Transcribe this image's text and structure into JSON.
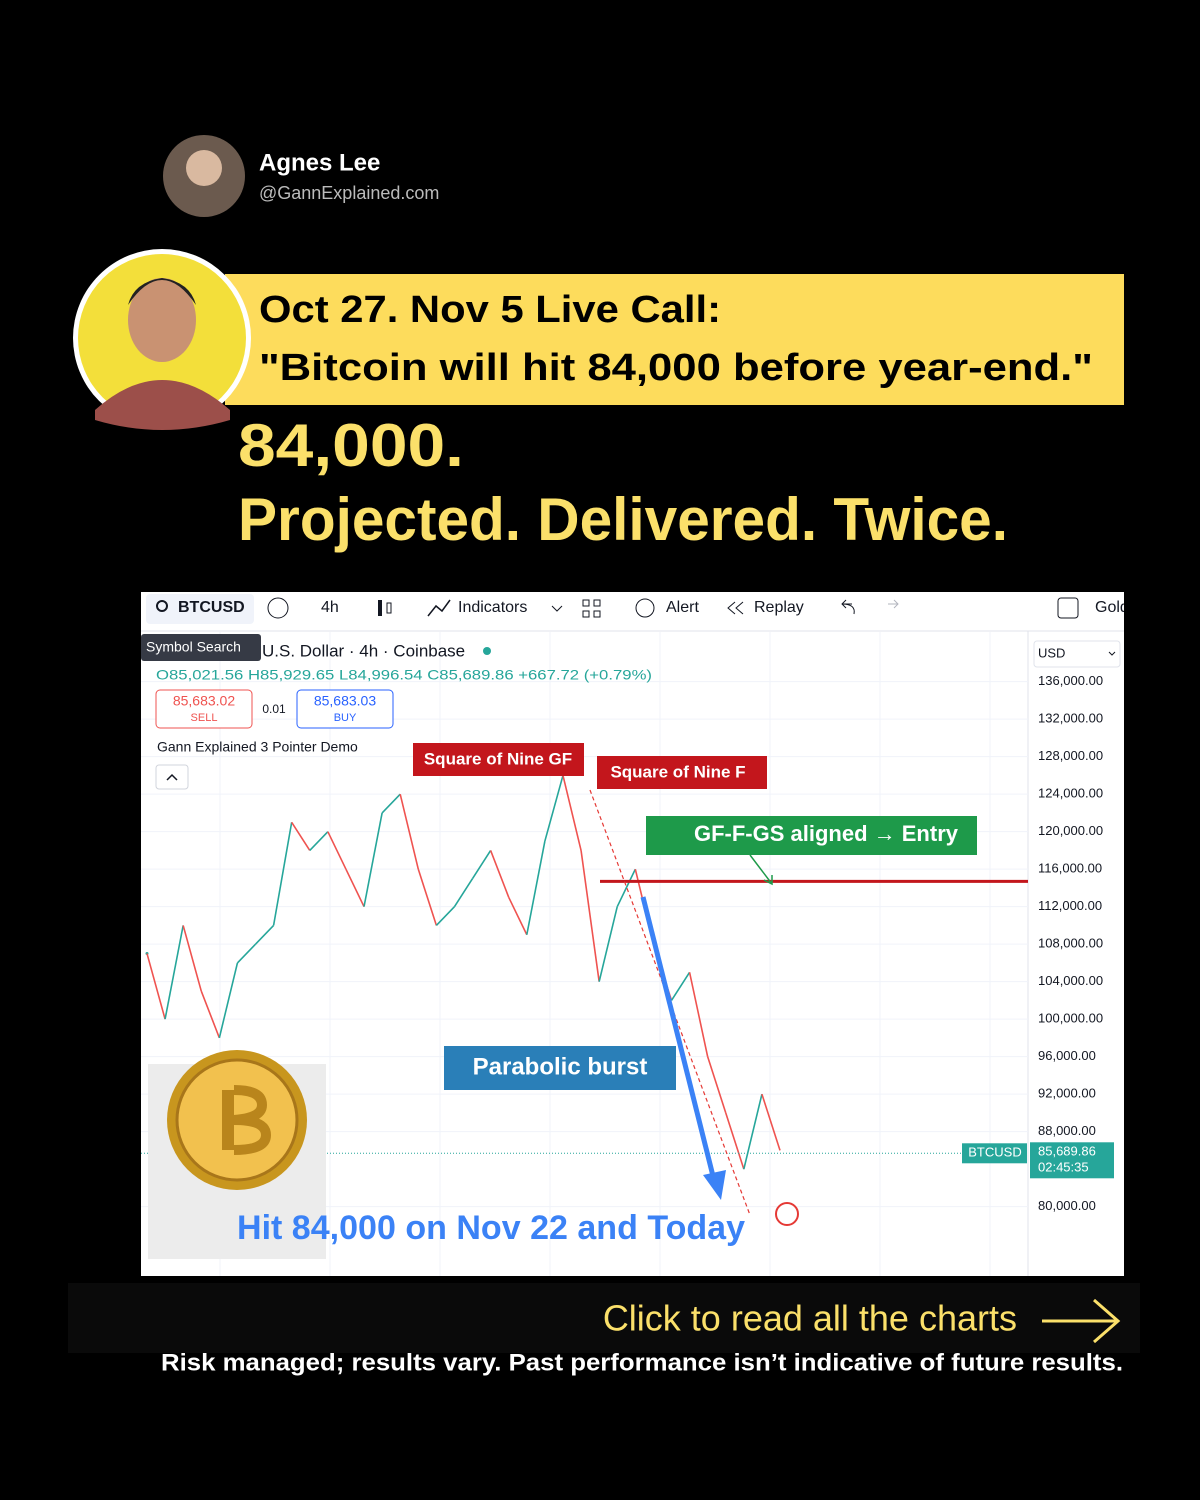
{
  "header": {
    "name": "Agnes Lee",
    "handle": "@GannExplained.com"
  },
  "banner": {
    "line1": "Oct 27. Nov 5 Live Call:",
    "line2": "\"Bitcoin will hit 84,000 before year-end.\""
  },
  "headline": {
    "line1": "84,000.",
    "line2": "Projected. Delivered. Twice."
  },
  "toolbar": {
    "symbol": "BTCUSD",
    "interval": "4h",
    "indicators": "Indicators",
    "alert": "Alert",
    "replay": "Replay",
    "more": "Gold",
    "tooltip": "Symbol Search"
  },
  "chart_data": {
    "type": "line",
    "title": "U.S. Dollar · 4h · Coinbase",
    "ohlc": "O85,021.56 H85,929.65 L84,996.54 C85,689.86 +667.72 (+0.79%)",
    "sell": {
      "price": "85,683.02",
      "label": "SELL"
    },
    "spread": "0.01",
    "buy": {
      "price": "85,683.03",
      "label": "BUY"
    },
    "indicator": "Gann Explained 3 Pointer Demo",
    "currency": "USD",
    "ylim": [
      72600,
      141300
    ],
    "yticks": [
      {
        "value": 136000,
        "label": "136,000.00"
      },
      {
        "value": 132000,
        "label": "132,000.00"
      },
      {
        "value": 128000,
        "label": "128,000.00"
      },
      {
        "value": 124000,
        "label": "124,000.00"
      },
      {
        "value": 120000,
        "label": "120,000.00"
      },
      {
        "value": 116000,
        "label": "116,000.00"
      },
      {
        "value": 112000,
        "label": "112,000.00"
      },
      {
        "value": 108000,
        "label": "108,000.00"
      },
      {
        "value": 104000,
        "label": "104,000.00"
      },
      {
        "value": 100000,
        "label": "100,000.00"
      },
      {
        "value": 96000,
        "label": "96,000.00"
      },
      {
        "value": 92000,
        "label": "92,000.00"
      },
      {
        "value": 88000,
        "label": "88,000.00"
      },
      {
        "value": 80000,
        "label": "80,000.00"
      }
    ],
    "values": [
      107000,
      100000,
      110000,
      103000,
      98000,
      106000,
      108000,
      110000,
      121000,
      118000,
      120000,
      116000,
      112000,
      122000,
      124000,
      116000,
      110000,
      112000,
      115000,
      118000,
      113000,
      109000,
      119000,
      126000,
      118000,
      104000,
      112000,
      116000,
      108000,
      102000,
      105000,
      96000,
      90000,
      84000,
      92000,
      86000
    ],
    "up_color": "#26a69a",
    "down_color": "#ef5350",
    "entry_level": 114700,
    "last_price": {
      "value": 85689.86,
      "label": "85,689.86"
    },
    "symbol_tag": "BTCUSD",
    "countdown": "02:45:35",
    "annotations": {
      "gf": "Square of Nine GF",
      "f": "Square of Nine F",
      "entry": "GF-F-GS aligned → Entry",
      "burst": "Parabolic burst",
      "hit": "Hit 84,000 on Nov 22 and Today"
    }
  },
  "footer": {
    "cta": "Click to read all the charts",
    "disclaimer": "Risk managed; results vary. Past performance isn’t indicative of future results."
  }
}
